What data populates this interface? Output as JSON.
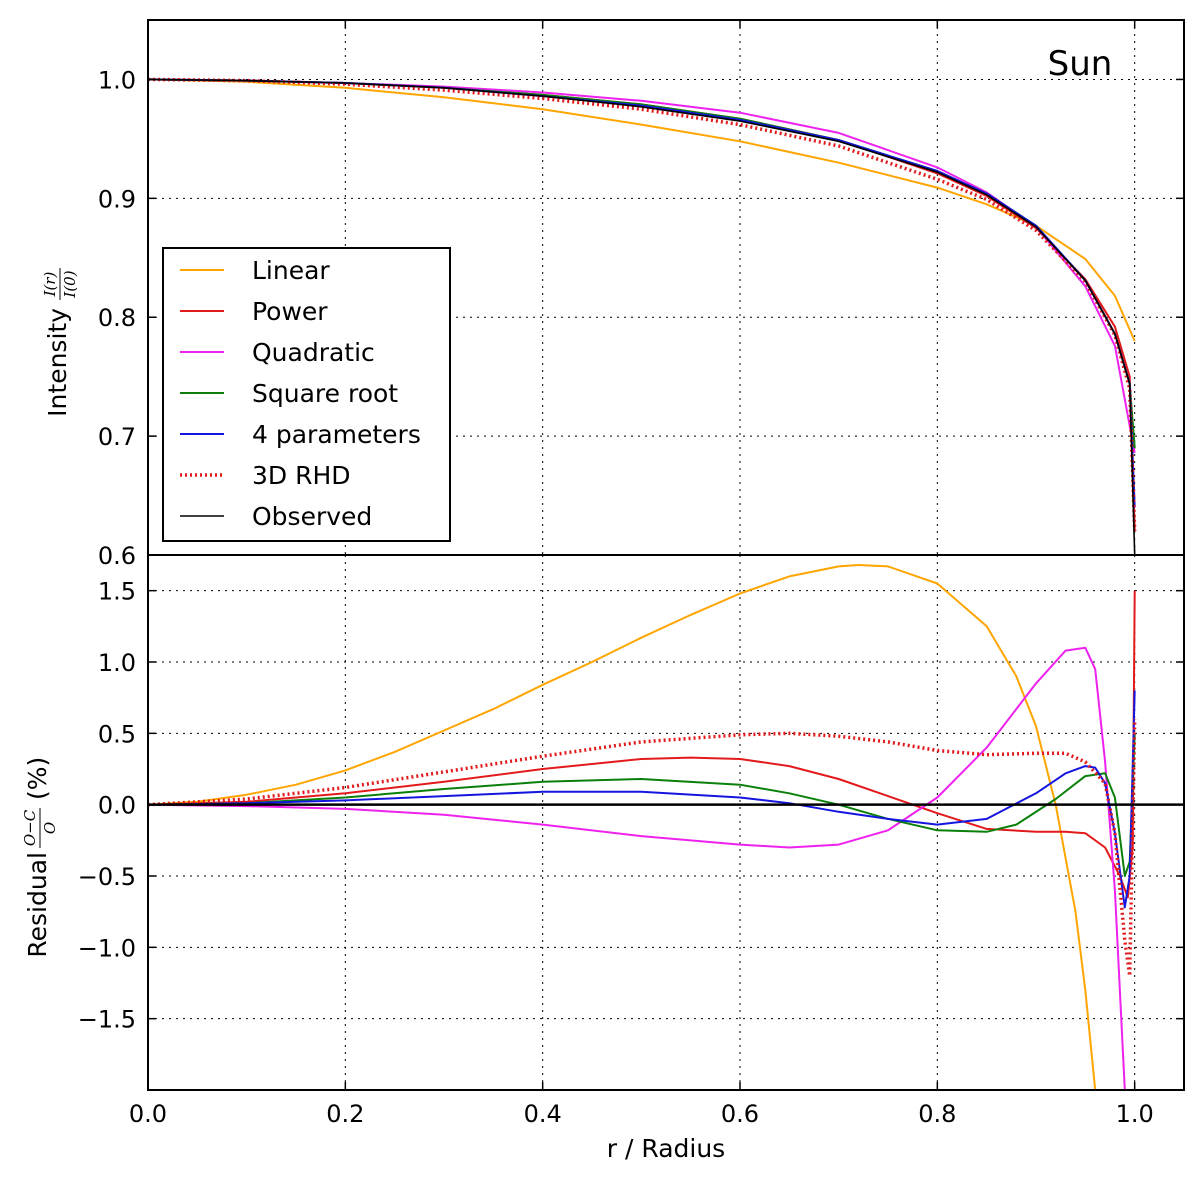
{
  "colors": {
    "linear": "#ffa500",
    "power": "#e31a1c",
    "quadratic": "#ee22ee",
    "sqrt": "#0a800a",
    "four": "#1515e0",
    "rhd": "#e31a1c",
    "observed": "#000000",
    "grid": "#000000",
    "axis": "#000000"
  },
  "chart_data": [
    {
      "type": "line",
      "panel": "intensity",
      "annotation": "Sun",
      "ylabel_prefix": "Intensity",
      "ylabel_num": "I(r)",
      "ylabel_den": "I(0)",
      "xlim": [
        0.0,
        1.05
      ],
      "ylim": [
        0.6,
        1.05
      ],
      "yticks": [
        "1.0",
        "0.9",
        "0.8",
        "0.7",
        "0.6"
      ],
      "ytick_values": [
        1.0,
        0.9,
        0.8,
        0.7,
        0.6
      ],
      "grid": true,
      "legend_position": "center-left",
      "series": [
        {
          "key": "linear",
          "name": "Linear",
          "style": "solid",
          "x": [
            0.0,
            0.1,
            0.2,
            0.3,
            0.4,
            0.5,
            0.6,
            0.7,
            0.8,
            0.85,
            0.9,
            0.95,
            0.98,
            1.0
          ],
          "y": [
            1.0,
            0.998,
            0.993,
            0.985,
            0.975,
            0.962,
            0.948,
            0.93,
            0.909,
            0.895,
            0.877,
            0.849,
            0.818,
            0.78
          ]
        },
        {
          "key": "power",
          "name": "Power",
          "style": "solid",
          "x": [
            0.0,
            0.1,
            0.2,
            0.3,
            0.4,
            0.5,
            0.6,
            0.7,
            0.8,
            0.85,
            0.9,
            0.95,
            0.98,
            0.995,
            1.0
          ],
          "y": [
            1.0,
            0.999,
            0.997,
            0.993,
            0.987,
            0.979,
            0.967,
            0.949,
            0.921,
            0.902,
            0.875,
            0.832,
            0.792,
            0.75,
            0.62
          ]
        },
        {
          "key": "quadratic",
          "name": "Quadratic",
          "style": "solid",
          "x": [
            0.0,
            0.1,
            0.2,
            0.3,
            0.4,
            0.5,
            0.6,
            0.7,
            0.8,
            0.85,
            0.9,
            0.95,
            0.98,
            1.0
          ],
          "y": [
            1.0,
            0.999,
            0.997,
            0.994,
            0.989,
            0.982,
            0.972,
            0.955,
            0.926,
            0.905,
            0.876,
            0.826,
            0.776,
            0.686
          ]
        },
        {
          "key": "sqrt",
          "name": "Square root",
          "style": "solid",
          "x": [
            0.0,
            0.1,
            0.2,
            0.3,
            0.4,
            0.5,
            0.6,
            0.7,
            0.8,
            0.85,
            0.9,
            0.95,
            0.98,
            0.995,
            1.0
          ],
          "y": [
            1.0,
            0.999,
            0.997,
            0.993,
            0.987,
            0.979,
            0.967,
            0.949,
            0.923,
            0.904,
            0.877,
            0.831,
            0.786,
            0.744,
            0.69
          ]
        },
        {
          "key": "four",
          "name": "4 parameters",
          "style": "solid",
          "x": [
            0.0,
            0.1,
            0.2,
            0.3,
            0.4,
            0.5,
            0.6,
            0.7,
            0.8,
            0.85,
            0.9,
            0.95,
            0.98,
            0.995,
            1.0
          ],
          "y": [
            1.0,
            0.999,
            0.997,
            0.993,
            0.986,
            0.978,
            0.966,
            0.949,
            0.923,
            0.904,
            0.877,
            0.831,
            0.786,
            0.744,
            0.64
          ]
        },
        {
          "key": "rhd",
          "name": "3D RHD",
          "style": "dotted",
          "x": [
            0.0,
            0.1,
            0.2,
            0.3,
            0.4,
            0.5,
            0.6,
            0.7,
            0.8,
            0.85,
            0.9,
            0.95,
            0.98,
            0.995,
            1.0
          ],
          "y": [
            1.0,
            0.999,
            0.996,
            0.991,
            0.984,
            0.975,
            0.962,
            0.944,
            0.916,
            0.899,
            0.873,
            0.83,
            0.785,
            0.74,
            0.62
          ]
        },
        {
          "key": "observed",
          "name": "Observed",
          "style": "thin",
          "x": [
            0.0,
            0.1,
            0.2,
            0.3,
            0.4,
            0.5,
            0.6,
            0.7,
            0.8,
            0.85,
            0.9,
            0.95,
            0.98,
            0.995,
            1.0
          ],
          "y": [
            1.0,
            0.999,
            0.997,
            0.993,
            0.986,
            0.977,
            0.965,
            0.948,
            0.922,
            0.903,
            0.876,
            0.831,
            0.786,
            0.744,
            0.6
          ]
        }
      ]
    },
    {
      "type": "line",
      "panel": "residual",
      "ylabel_prefix": "Residual",
      "ylabel_num": "O−C",
      "ylabel_den": "O",
      "ylabel_suffix": "(%)",
      "xlabel": "r / Radius",
      "xlim": [
        0.0,
        1.05
      ],
      "ylim": [
        -2.0,
        1.75
      ],
      "yticks": [
        "1.5",
        "1.0",
        "0.5",
        "0.0",
        "−0.5",
        "−1.0",
        "−1.5"
      ],
      "ytick_values": [
        1.5,
        1.0,
        0.5,
        0.0,
        -0.5,
        -1.0,
        -1.5
      ],
      "xticks": [
        "0.0",
        "0.2",
        "0.4",
        "0.6",
        "0.8",
        "1.0"
      ],
      "xtick_values": [
        0.0,
        0.2,
        0.4,
        0.6,
        0.8,
        1.0
      ],
      "zero_line": 0.0,
      "grid": true,
      "series": [
        {
          "key": "linear",
          "name": "Linear",
          "style": "solid",
          "x": [
            0.0,
            0.05,
            0.1,
            0.15,
            0.2,
            0.25,
            0.3,
            0.35,
            0.4,
            0.45,
            0.5,
            0.55,
            0.6,
            0.65,
            0.7,
            0.72,
            0.75,
            0.8,
            0.85,
            0.88,
            0.9,
            0.92,
            0.94,
            0.95,
            0.96
          ],
          "y": [
            0.0,
            0.02,
            0.07,
            0.14,
            0.24,
            0.37,
            0.52,
            0.67,
            0.84,
            1.0,
            1.17,
            1.33,
            1.48,
            1.6,
            1.67,
            1.68,
            1.67,
            1.55,
            1.25,
            0.9,
            0.55,
            0.0,
            -0.75,
            -1.3,
            -2.0
          ]
        },
        {
          "key": "power",
          "name": "Power",
          "style": "solid",
          "x": [
            0.0,
            0.1,
            0.2,
            0.3,
            0.4,
            0.5,
            0.55,
            0.6,
            0.65,
            0.7,
            0.75,
            0.8,
            0.85,
            0.9,
            0.93,
            0.95,
            0.97,
            0.985,
            0.993,
            0.998,
            1.0
          ],
          "y": [
            0.0,
            0.02,
            0.08,
            0.16,
            0.25,
            0.32,
            0.33,
            0.32,
            0.27,
            0.18,
            0.06,
            -0.06,
            -0.17,
            -0.19,
            -0.19,
            -0.2,
            -0.3,
            -0.5,
            -0.65,
            -0.3,
            1.5
          ]
        },
        {
          "key": "quadratic",
          "name": "Quadratic",
          "style": "solid",
          "x": [
            0.0,
            0.1,
            0.2,
            0.3,
            0.4,
            0.5,
            0.6,
            0.65,
            0.7,
            0.75,
            0.8,
            0.85,
            0.9,
            0.93,
            0.95,
            0.96,
            0.97,
            0.98,
            0.99
          ],
          "y": [
            0.0,
            -0.01,
            -0.03,
            -0.07,
            -0.14,
            -0.22,
            -0.28,
            -0.3,
            -0.28,
            -0.18,
            0.05,
            0.4,
            0.85,
            1.08,
            1.1,
            0.95,
            0.3,
            -0.6,
            -2.0
          ]
        },
        {
          "key": "sqrt",
          "name": "Square root",
          "style": "solid",
          "x": [
            0.0,
            0.1,
            0.2,
            0.3,
            0.4,
            0.5,
            0.6,
            0.65,
            0.7,
            0.75,
            0.8,
            0.85,
            0.88,
            0.92,
            0.95,
            0.97,
            0.98,
            0.99,
            0.995,
            1.0
          ],
          "y": [
            0.0,
            0.01,
            0.05,
            0.11,
            0.16,
            0.18,
            0.14,
            0.08,
            0.0,
            -0.1,
            -0.18,
            -0.19,
            -0.14,
            0.04,
            0.2,
            0.22,
            0.05,
            -0.5,
            -0.4,
            0.5
          ]
        },
        {
          "key": "four",
          "name": "4 parameters",
          "style": "solid",
          "x": [
            0.0,
            0.1,
            0.2,
            0.3,
            0.4,
            0.5,
            0.6,
            0.65,
            0.7,
            0.75,
            0.8,
            0.85,
            0.9,
            0.93,
            0.95,
            0.96,
            0.97,
            0.98,
            0.99,
            0.995,
            1.0
          ],
          "y": [
            0.0,
            0.01,
            0.03,
            0.06,
            0.09,
            0.09,
            0.05,
            0.01,
            -0.05,
            -0.1,
            -0.14,
            -0.1,
            0.08,
            0.22,
            0.27,
            0.26,
            0.15,
            -0.2,
            -0.72,
            -0.5,
            0.8
          ]
        },
        {
          "key": "rhd",
          "name": "3D RHD",
          "style": "dotted",
          "x": [
            0.0,
            0.1,
            0.2,
            0.3,
            0.4,
            0.5,
            0.6,
            0.65,
            0.7,
            0.75,
            0.8,
            0.85,
            0.9,
            0.93,
            0.95,
            0.97,
            0.98,
            0.99,
            0.995,
            1.0
          ],
          "y": [
            0.0,
            0.04,
            0.12,
            0.23,
            0.34,
            0.44,
            0.49,
            0.5,
            0.48,
            0.44,
            0.38,
            0.35,
            0.36,
            0.36,
            0.3,
            0.15,
            -0.2,
            -0.95,
            -1.2,
            0.6
          ]
        }
      ]
    }
  ],
  "legend": [
    {
      "key": "linear",
      "label": "Linear"
    },
    {
      "key": "power",
      "label": "Power"
    },
    {
      "key": "quadratic",
      "label": "Quadratic"
    },
    {
      "key": "sqrt",
      "label": "Square root"
    },
    {
      "key": "four",
      "label": "4 parameters"
    },
    {
      "key": "rhd",
      "label": "3D RHD"
    },
    {
      "key": "observed",
      "label": "Observed"
    }
  ]
}
